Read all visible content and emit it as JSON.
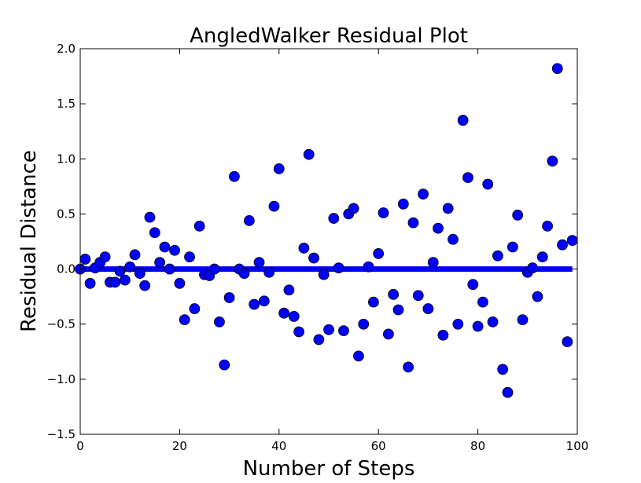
{
  "chart_data": {
    "type": "scatter",
    "title": "AngledWalker Residual Plot",
    "xlabel": "Number of Steps",
    "ylabel": "Residual Distance",
    "xlim": [
      0,
      100
    ],
    "ylim": [
      -1.5,
      2.0
    ],
    "x_ticks": [
      0,
      20,
      40,
      60,
      80,
      100
    ],
    "y_ticks": [
      -1.5,
      -1.0,
      -0.5,
      0.0,
      0.5,
      1.0,
      1.5,
      2.0
    ],
    "x_tick_labels": [
      "0",
      "20",
      "40",
      "60",
      "80",
      "100"
    ],
    "y_tick_labels": [
      "−1.5",
      "−1.0",
      "−0.5",
      "0.0",
      "0.5",
      "1.0",
      "1.5",
      "2.0"
    ],
    "grid": false,
    "marker_color": "#0000ff",
    "zero_line_color": "#0000ff",
    "zero_line": {
      "x": [
        0,
        99
      ],
      "y": [
        0.0,
        0.0
      ]
    },
    "series": [
      {
        "x": [
          0,
          1,
          2,
          3,
          4,
          5,
          6,
          7,
          8,
          9,
          10,
          11,
          12,
          13,
          14,
          15,
          16,
          17,
          18,
          19,
          20,
          21,
          22,
          23,
          24,
          25,
          26,
          27,
          28,
          29,
          30,
          31,
          32,
          33,
          34,
          35,
          36,
          37,
          38,
          39,
          40,
          41,
          42,
          43,
          44,
          45,
          46,
          47,
          48,
          49,
          50,
          51,
          52,
          53,
          54,
          55,
          56,
          57,
          58,
          59,
          60,
          61,
          62,
          63,
          64,
          65,
          66,
          67,
          68,
          69,
          70,
          71,
          72,
          73,
          74,
          75,
          76,
          77,
          78,
          79,
          80,
          81,
          82,
          83,
          84,
          85,
          86,
          87,
          88,
          89,
          90,
          91,
          92,
          93,
          94,
          95,
          96,
          97,
          98,
          99
        ],
        "y": [
          0.0,
          0.09,
          -0.13,
          0.01,
          0.06,
          0.11,
          -0.12,
          -0.12,
          -0.02,
          -0.1,
          0.02,
          0.13,
          -0.04,
          -0.15,
          0.47,
          0.33,
          0.06,
          0.2,
          0.0,
          0.17,
          -0.13,
          -0.46,
          0.11,
          -0.36,
          0.39,
          -0.05,
          -0.06,
          0.0,
          -0.48,
          -0.87,
          -0.26,
          0.84,
          0.0,
          -0.04,
          0.44,
          -0.32,
          0.06,
          -0.29,
          -0.03,
          0.57,
          0.91,
          -0.4,
          -0.19,
          -0.43,
          -0.57,
          0.19,
          1.04,
          0.1,
          -0.64,
          -0.05,
          -0.55,
          0.46,
          0.01,
          -0.56,
          0.5,
          0.55,
          -0.79,
          -0.5,
          0.02,
          -0.3,
          0.14,
          0.51,
          -0.59,
          -0.23,
          -0.37,
          0.59,
          -0.89,
          0.42,
          -0.24,
          0.68,
          -0.36,
          0.06,
          0.37,
          -0.6,
          0.55,
          0.27,
          -0.5,
          1.35,
          0.83,
          -0.14,
          -0.52,
          -0.3,
          0.77,
          -0.48,
          0.12,
          -0.91,
          -1.12,
          0.2,
          0.49,
          -0.46,
          -0.03,
          0.01,
          -0.25,
          0.11,
          0.39,
          0.98,
          1.82,
          0.22,
          -0.66,
          0.26
        ]
      }
    ]
  }
}
